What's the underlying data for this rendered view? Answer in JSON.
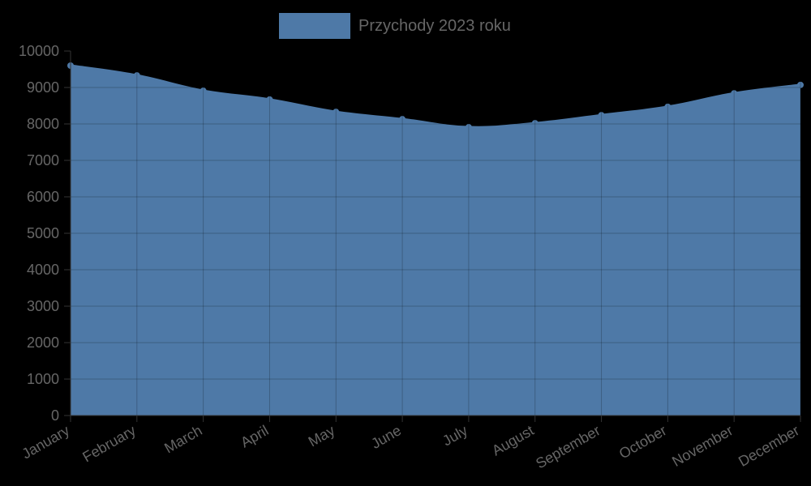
{
  "colors": {
    "background": "#000000",
    "area_fill": "#4e79a7",
    "area_stroke": "#4e79a7",
    "gridline": "rgba(0,0,0,0.22)",
    "axis": "#333333",
    "text": "#666666"
  },
  "legend": {
    "label": "Przychody 2023 roku",
    "swatch_color": "#4e79a7"
  },
  "chart_data": {
    "type": "area",
    "title": "",
    "xlabel": "",
    "ylabel": "",
    "categories": [
      "January",
      "February",
      "March",
      "April",
      "May",
      "June",
      "July",
      "August",
      "September",
      "October",
      "November",
      "December"
    ],
    "series": [
      {
        "name": "Przychody 2023 roku",
        "values": [
          9600,
          9330,
          8910,
          8670,
          8330,
          8130,
          7910,
          8020,
          8240,
          8470,
          8840,
          9070
        ]
      }
    ],
    "ylim": [
      0,
      10000
    ],
    "yticks": [
      0,
      1000,
      2000,
      3000,
      4000,
      5000,
      6000,
      7000,
      8000,
      9000,
      10000
    ],
    "grid": true,
    "legend_position": "top"
  }
}
